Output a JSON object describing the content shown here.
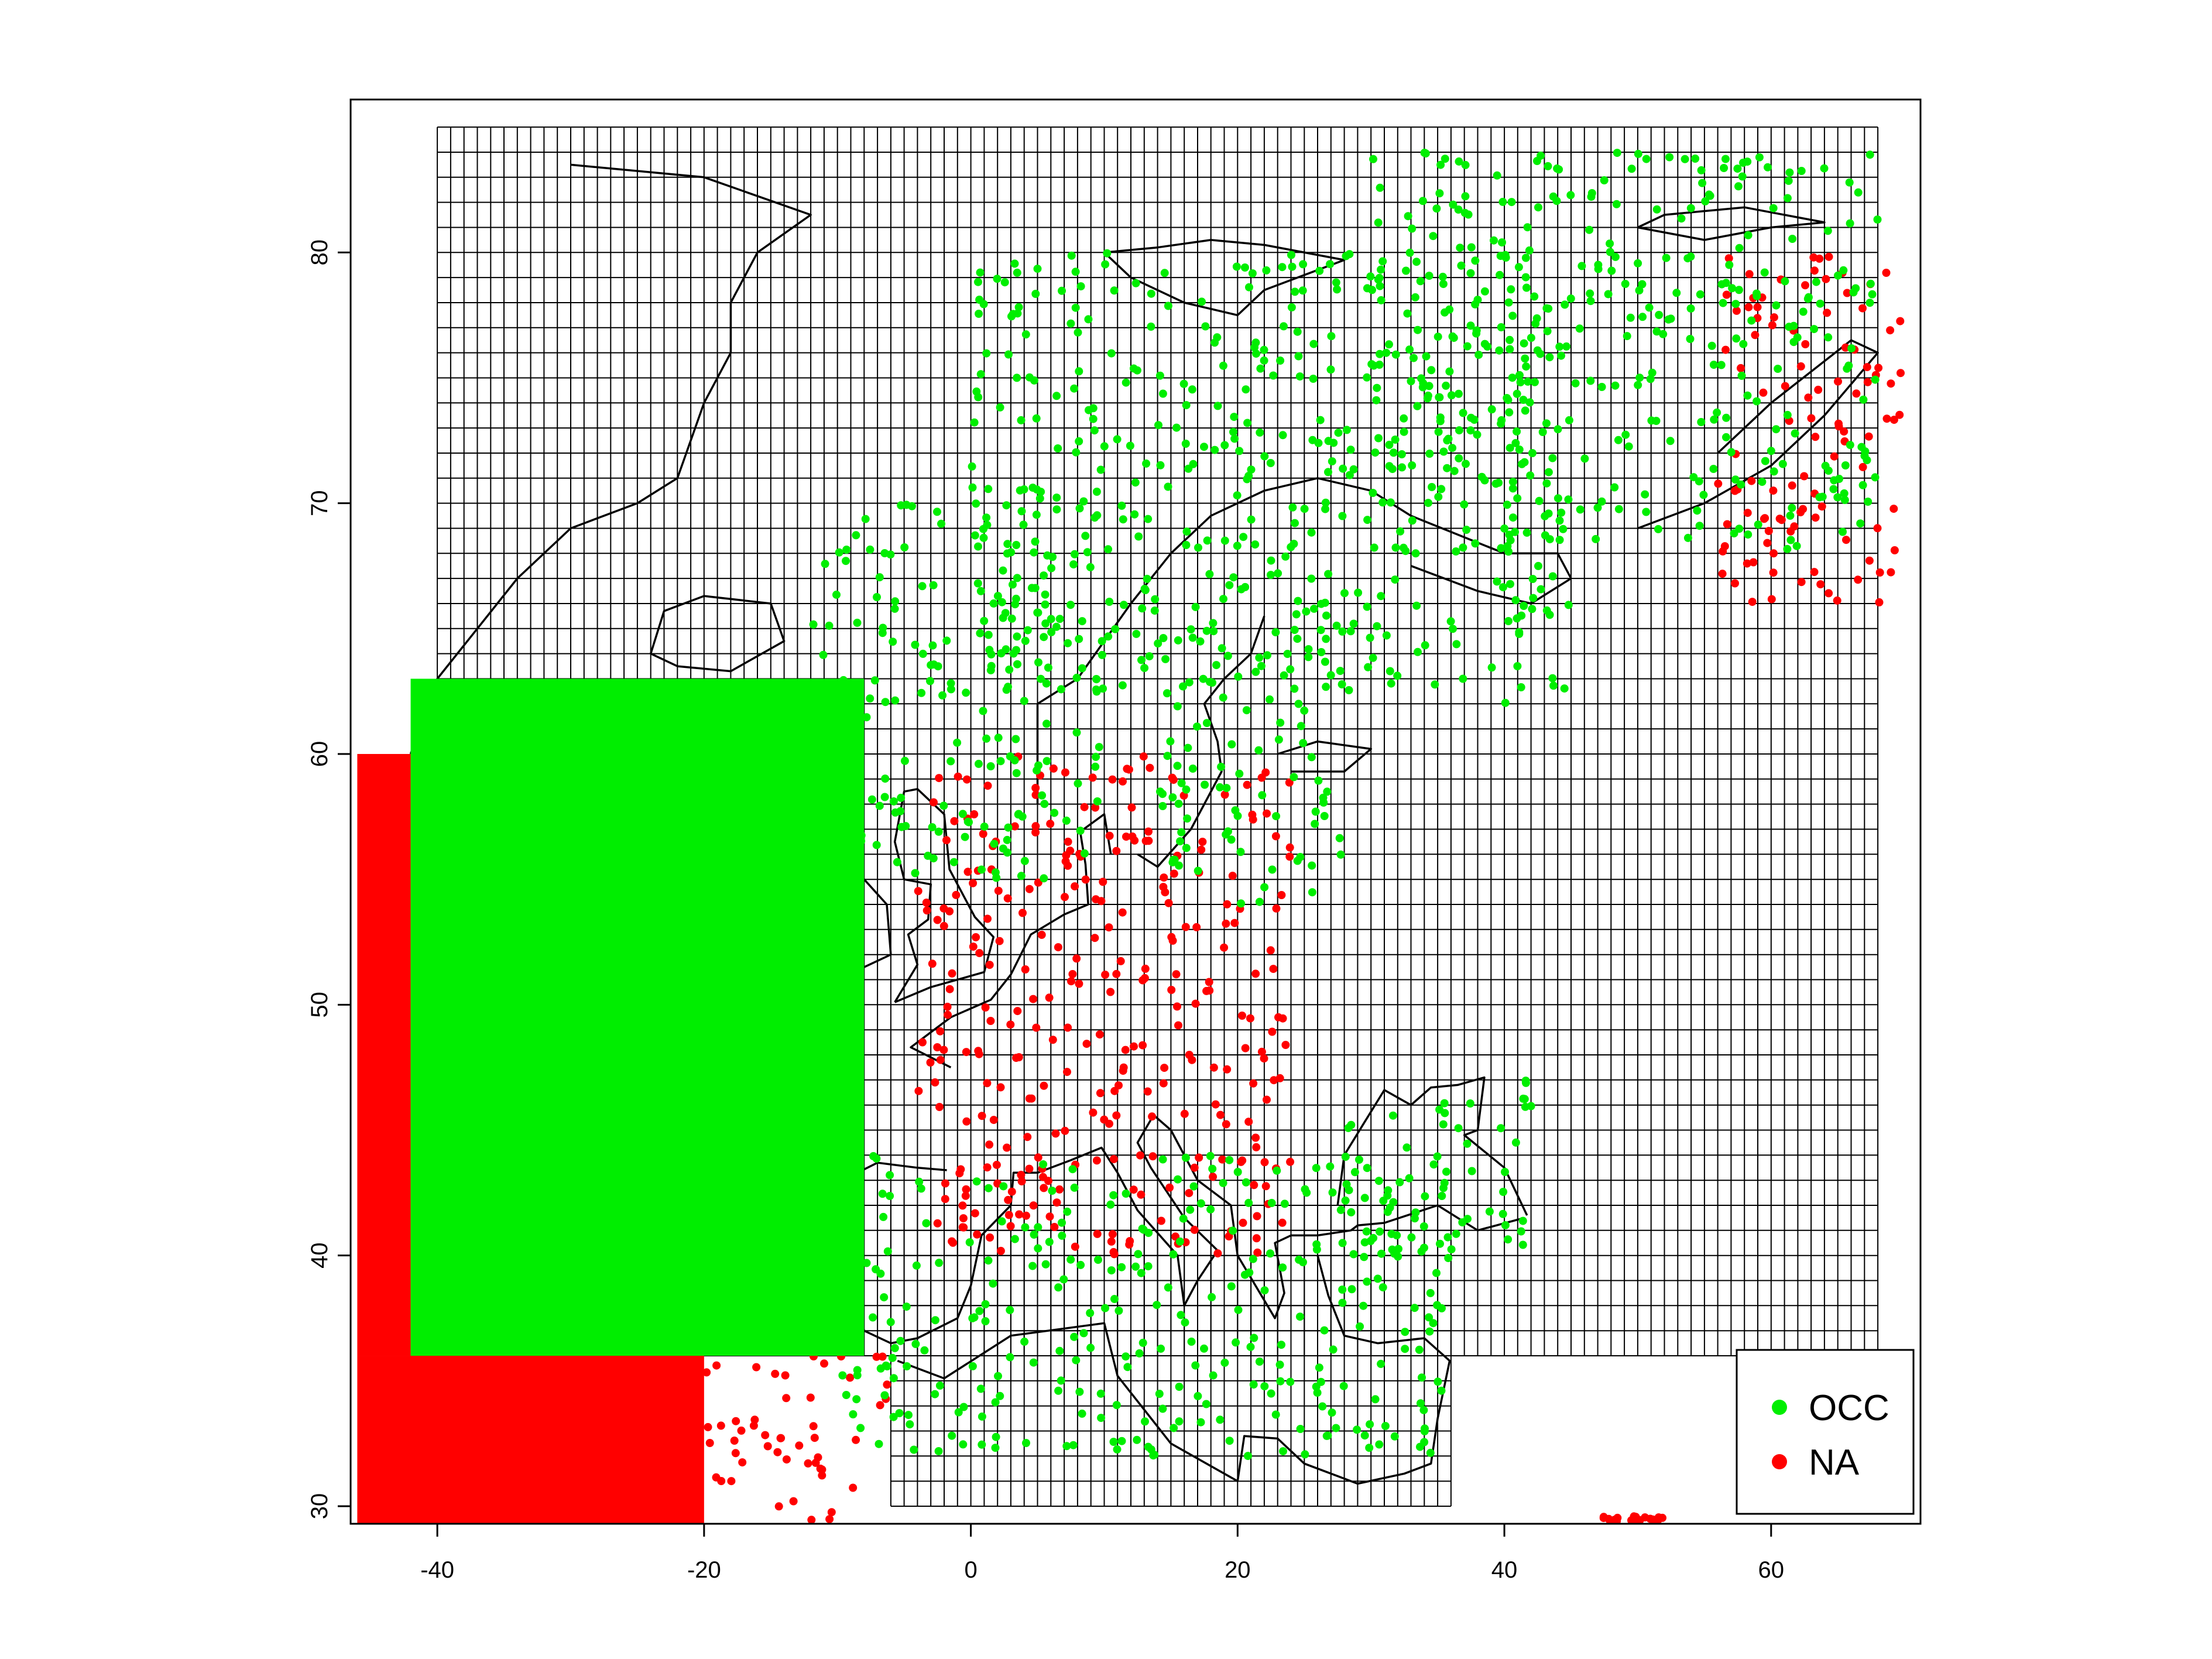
{
  "chart_data": {
    "type": "scatter",
    "title": "",
    "xlabel": "",
    "ylabel": "",
    "xlim": [
      -46.5,
      71.2
    ],
    "ylim": [
      29.3,
      86.1
    ],
    "x_ticks": [
      -40,
      -20,
      0,
      20,
      40,
      60
    ],
    "y_ticks": [
      30,
      40,
      50,
      60,
      70,
      80
    ],
    "grid": {
      "cell_size_deg": 1,
      "regions": [
        {
          "name": "north",
          "x": [
            -40,
            68
          ],
          "y": [
            36,
            85
          ]
        },
        {
          "name": "mediterranean",
          "x": [
            -6,
            36
          ],
          "y": [
            30,
            42
          ]
        }
      ]
    },
    "legend": {
      "position": "bottom-right",
      "entries": [
        {
          "label": "OCC",
          "color": "#00ee00"
        },
        {
          "label": "NA",
          "color": "#ff0000"
        }
      ]
    },
    "series": [
      {
        "name": "OCC",
        "color": "#00ee00",
        "regions": [
          {
            "x": [
              -42,
              -8
            ],
            "y": [
              36,
              63
            ],
            "density": "solid"
          },
          {
            "x": [
              -12,
              10
            ],
            "y": [
              55,
              70
            ]
          },
          {
            "x": [
              0,
              45
            ],
            "y": [
              62,
              80
            ]
          },
          {
            "x": [
              30,
              68
            ],
            "y": [
              68,
              84
            ]
          },
          {
            "x": [
              14,
              28
            ],
            "y": [
              54,
              66
            ]
          },
          {
            "x": [
              -10,
              36
            ],
            "y": [
              32,
              44
            ]
          },
          {
            "x": [
              28,
              42
            ],
            "y": [
              40,
              47
            ]
          }
        ]
      },
      {
        "name": "NA",
        "color": "#ff0000",
        "regions": [
          {
            "x": [
              -46,
              -42
            ],
            "y": [
              36,
              60
            ],
            "density": "solid"
          },
          {
            "x": [
              -46,
              -20
            ],
            "y": [
              29.3,
              36
            ],
            "density": "solid"
          },
          {
            "x": [
              -20,
              -6
            ],
            "y": [
              29.3,
              36
            ]
          },
          {
            "x": [
              56,
              70
            ],
            "y": [
              66,
              80
            ]
          },
          {
            "x": [
              47,
              52
            ],
            "y": [
              29.4,
              29.6
            ]
          },
          {
            "x": [
              -4,
              24
            ],
            "y": [
              40,
              60
            ]
          }
        ]
      }
    ]
  }
}
